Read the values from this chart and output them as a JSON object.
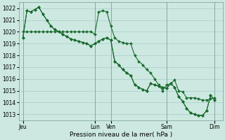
{
  "background_color": "#cce8e0",
  "grid_color": "#aacccc",
  "line_color": "#1a6b2e",
  "xlabel": "Pression niveau de la mer( hPa )",
  "ylim": [
    1012.5,
    1022.5
  ],
  "yticks": [
    1013,
    1014,
    1015,
    1016,
    1017,
    1018,
    1019,
    1020,
    1021,
    1022
  ],
  "xtick_labels": [
    "Jeu",
    "Lun",
    "Ven",
    "Sam",
    "Dim"
  ],
  "xtick_positions": [
    0,
    18,
    22,
    36,
    48
  ],
  "xlim": [
    -1,
    50
  ],
  "vline_positions": [
    0,
    18,
    22,
    36,
    48
  ],
  "series1": [
    1019.5,
    1021.8,
    1021.7,
    1021.9,
    1022.1,
    1021.5,
    1021.0,
    1020.5,
    1020.2,
    1020.0,
    1019.8,
    1019.6,
    1019.4,
    1019.3,
    1019.2,
    1019.1,
    1019.0,
    1018.8,
    1019.0,
    1019.2,
    1019.4,
    1019.5,
    1019.3,
    1017.5,
    1017.2,
    1016.8,
    1016.5,
    1016.3,
    1015.5,
    1015.3,
    1015.1,
    1015.0,
    1015.6,
    1015.5,
    1015.4,
    1015.3,
    1015.2,
    1015.6,
    1015.3,
    1014.5,
    1014.1,
    1013.5,
    1013.1,
    1013.0,
    1012.9,
    1012.9,
    1013.3,
    1014.6,
    1014.2
  ],
  "series2": [
    1020.0,
    1020.0,
    1020.0,
    1020.0,
    1020.0,
    1020.0,
    1020.0,
    1020.0,
    1020.0,
    1020.0,
    1020.0,
    1020.0,
    1020.0,
    1020.0,
    1020.0,
    1020.0,
    1020.0,
    1020.0,
    1019.8,
    1021.7,
    1021.8,
    1021.7,
    1020.5,
    1019.5,
    1019.2,
    1019.1,
    1019.0,
    1019.0,
    1018.0,
    1017.5,
    1017.2,
    1016.8,
    1016.5,
    1016.0,
    1015.5,
    1015.0,
    1015.5,
    1015.6,
    1015.9,
    1015.0,
    1014.9,
    1014.4,
    1014.4,
    1014.4,
    1014.3,
    1014.2,
    1014.2,
    1014.3,
    1014.4
  ],
  "series3": [
    1019.5,
    1021.8,
    1021.7,
    1021.9,
    1022.1,
    1021.5,
    1021.0,
    1020.5,
    1020.2,
    1020.0,
    1019.8,
    1019.6,
    1019.4,
    1019.3,
    1019.2,
    1019.1,
    1019.0,
    1018.8,
    1019.0,
    1019.2,
    1019.4,
    1019.5,
    1019.3,
    1017.5,
    1017.2,
    1016.8,
    1016.5,
    1016.3,
    1015.5,
    1015.3,
    1015.1,
    1015.0,
    1015.6,
    1015.5,
    1015.4,
    1015.3,
    1015.2,
    1015.6,
    1015.3,
    1014.5,
    1014.1,
    1013.5,
    1013.1,
    1013.0,
    1012.9,
    1012.9,
    1013.3,
    1014.6,
    1014.2
  ],
  "marker": "D",
  "marker_size": 2.0,
  "linewidth": 0.8,
  "tick_fontsize": 5.5,
  "xlabel_fontsize": 6.5
}
